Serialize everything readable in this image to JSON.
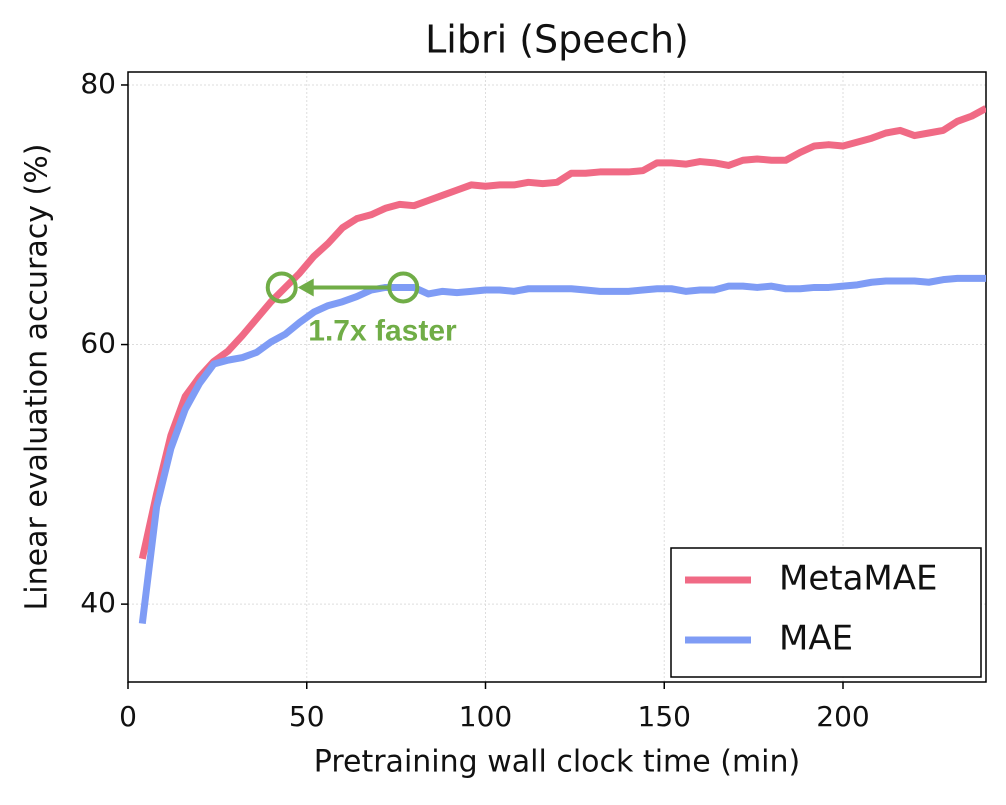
{
  "chart_data": {
    "type": "line",
    "title": "Libri (Speech)",
    "xlabel": "Pretraining wall clock time (min)",
    "ylabel": "Linear evaluation accuracy (%)",
    "x": [
      4,
      8,
      12,
      16,
      20,
      24,
      28,
      32,
      36,
      40,
      44,
      48,
      52,
      56,
      60,
      64,
      68,
      72,
      76,
      80,
      84,
      88,
      92,
      96,
      100,
      104,
      108,
      112,
      116,
      120,
      124,
      128,
      132,
      136,
      140,
      144,
      148,
      152,
      156,
      160,
      164,
      168,
      172,
      176,
      180,
      184,
      188,
      192,
      196,
      200,
      204,
      208,
      212,
      216,
      220,
      224,
      228,
      232,
      236,
      240
    ],
    "series": [
      {
        "name": "MetaMAE",
        "color": "#f06a85",
        "values": [
          43.5,
          48.5,
          53,
          56,
          57.5,
          58.7,
          59.5,
          60.7,
          62,
          63.3,
          64.4,
          65.5,
          66.8,
          67.8,
          69,
          69.7,
          70,
          70.5,
          70.8,
          70.7,
          71.1,
          71.5,
          71.9,
          72.3,
          72.2,
          72.3,
          72.3,
          72.5,
          72.4,
          72.5,
          73.2,
          73.2,
          73.3,
          73.3,
          73.3,
          73.4,
          74,
          74,
          73.9,
          74.1,
          74,
          73.8,
          74.2,
          74.3,
          74.2,
          74.2,
          74.8,
          75.3,
          75.4,
          75.3,
          75.6,
          75.9,
          76.3,
          76.5,
          76.1,
          76.3,
          76.5,
          77.2,
          77.6,
          78.2
        ]
      },
      {
        "name": "MAE",
        "color": "#7f9cf5",
        "values": [
          38.5,
          47.5,
          52,
          55,
          57,
          58.5,
          58.8,
          59,
          59.4,
          60.2,
          60.8,
          61.7,
          62.5,
          63,
          63.3,
          63.7,
          64.2,
          64.4,
          64.4,
          64.4,
          63.9,
          64.1,
          64,
          64.1,
          64.2,
          64.2,
          64.1,
          64.3,
          64.3,
          64.3,
          64.3,
          64.2,
          64.1,
          64.1,
          64.1,
          64.2,
          64.3,
          64.3,
          64.1,
          64.2,
          64.2,
          64.5,
          64.5,
          64.4,
          64.5,
          64.3,
          64.3,
          64.4,
          64.4,
          64.5,
          64.6,
          64.8,
          64.9,
          64.9,
          64.9,
          64.8,
          65,
          65.1,
          65.1,
          65.1
        ]
      }
    ],
    "xlim": [
      0,
      240
    ],
    "xticks": [
      0,
      50,
      100,
      150,
      200
    ],
    "ylim": [
      34,
      81
    ],
    "yticks": [
      40,
      60,
      80
    ],
    "grid": true,
    "legend": "lower right",
    "annotation": {
      "text": "1.7x faster",
      "from": [
        77,
        64.4
      ],
      "to": [
        43,
        64.4
      ],
      "color": "#70ad47"
    }
  }
}
